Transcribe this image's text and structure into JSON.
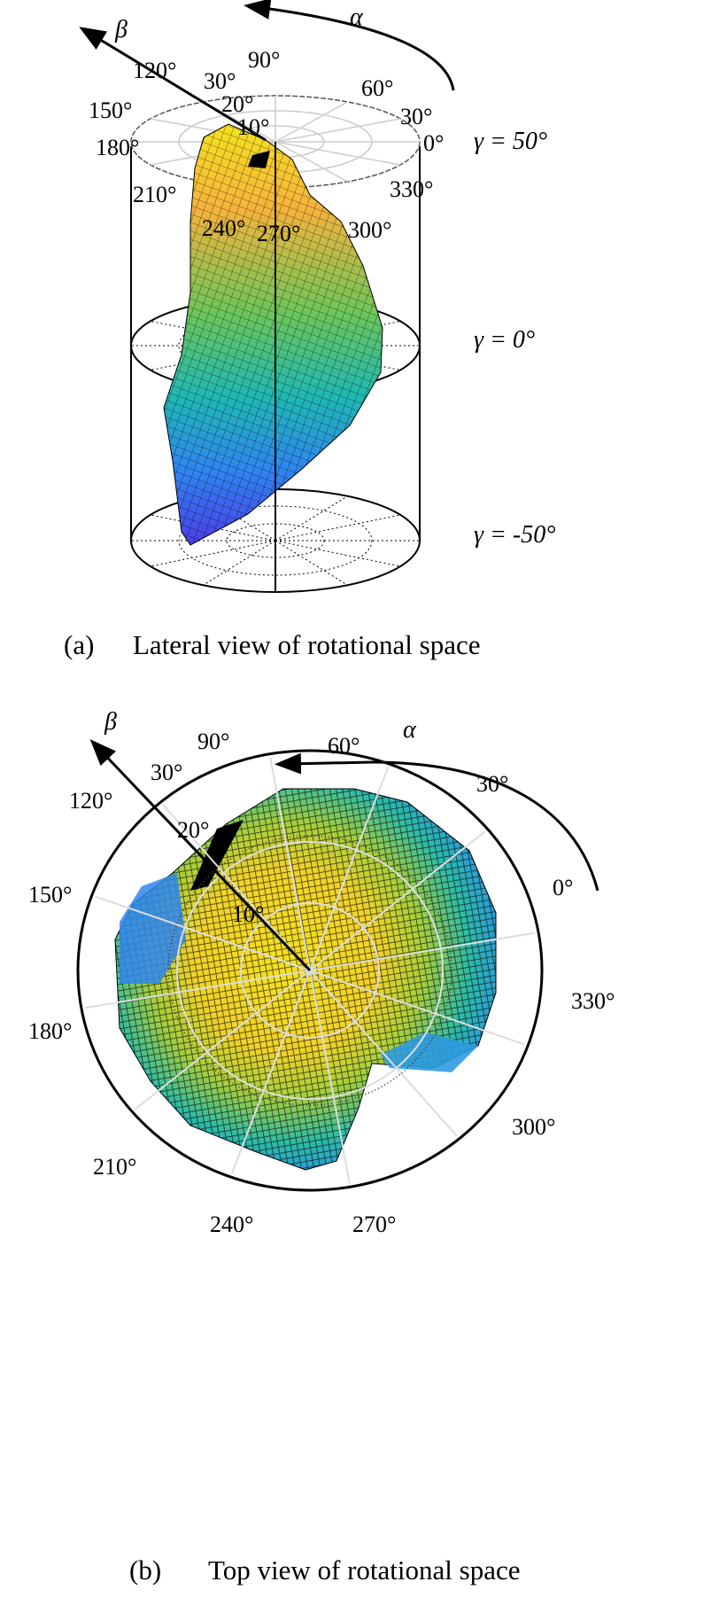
{
  "panel_a": {
    "caption_index": "(a)",
    "caption": "Lateral view of rotational space",
    "alpha_label": "α",
    "beta_label": "β",
    "alpha_ticks": [
      "90°",
      "60°",
      "30°",
      "0°",
      "330°",
      "300°",
      "270°",
      "240°",
      "210°",
      "180°",
      "150°",
      "120°"
    ],
    "beta_ticks": [
      "10°",
      "20°",
      "30°"
    ],
    "gamma_levels": [
      "γ  = 50°",
      "γ  = 0°",
      "γ  = -50°"
    ]
  },
  "panel_b": {
    "caption_index": "(b)",
    "caption": "Top view of rotational space",
    "alpha_label": "α",
    "beta_label": "β",
    "alpha_ticks": [
      "90°",
      "60°",
      "30°",
      "0°",
      "330°",
      "300°",
      "270°",
      "240°",
      "210°",
      "180°",
      "150°",
      "120°"
    ],
    "beta_ticks": [
      "10°",
      "20°",
      "30°"
    ]
  },
  "colors": {
    "yellow": "#f5e21f",
    "orange": "#f6b33c",
    "green": "#5fc162",
    "teal": "#1fb8b4",
    "blue": "#2f86f0",
    "indigo": "#4a3ee8"
  }
}
